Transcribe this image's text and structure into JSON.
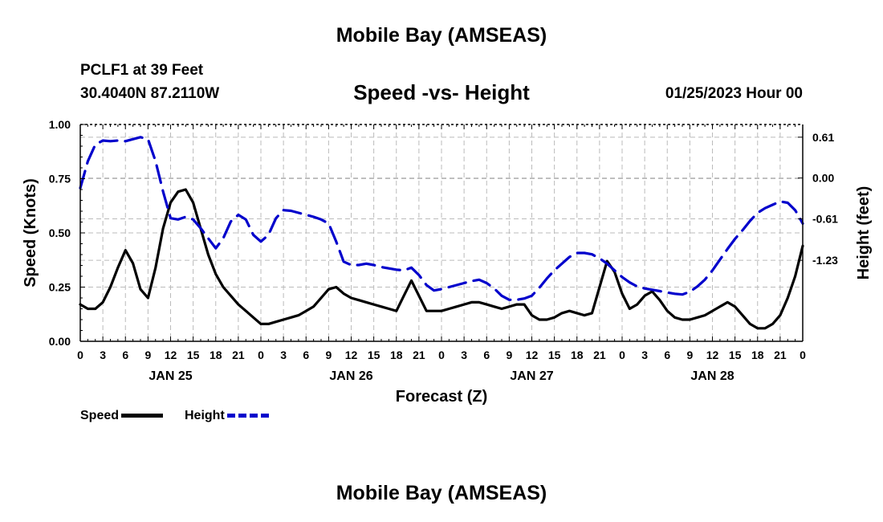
{
  "header": {
    "title_top": "Mobile Bay (AMSEAS)",
    "station": "PCLF1 at 39 Feet",
    "coords": "30.4040N  87.2110W",
    "datetime": "01/25/2023 Hour 00",
    "title_bottom": "Mobile Bay (AMSEAS)"
  },
  "legend": {
    "speed": "Speed",
    "height": "Height"
  },
  "colors": {
    "speed": "#000000",
    "height": "#0000cc",
    "grid": "#bbbbbb"
  },
  "chart_data": {
    "type": "line",
    "title": "Speed -vs- Height",
    "xlabel": "Forecast (Z)",
    "ylabel_left": "Speed (Knots)",
    "ylabel_right": "Height (feet)",
    "x_range": [
      0,
      96
    ],
    "ylim_left": [
      0,
      1.0
    ],
    "ylim_right": [
      -2.44,
      0.8
    ],
    "x_tick_step_hours": 3,
    "x_tick_labels": [
      "0",
      "3",
      "6",
      "9",
      "12",
      "15",
      "18",
      "21",
      "0",
      "3",
      "6",
      "9",
      "12",
      "15",
      "18",
      "21",
      "0",
      "3",
      "6",
      "9",
      "12",
      "15",
      "18",
      "21",
      "0",
      "3",
      "6",
      "9",
      "12",
      "15",
      "18",
      "21",
      "0"
    ],
    "day_labels": [
      {
        "label": "JAN 25",
        "hour": 12
      },
      {
        "label": "JAN 26",
        "hour": 36
      },
      {
        "label": "JAN 27",
        "hour": 60
      },
      {
        "label": "JAN 28",
        "hour": 84
      }
    ],
    "y_ticks_left": [
      0.0,
      0.25,
      0.5,
      0.75,
      1.0
    ],
    "y_tick_labels_left": [
      "0.00",
      "0.25",
      "0.50",
      "0.75",
      "1.00"
    ],
    "y_ticks_right": [
      0.61,
      0.0,
      -0.61,
      -1.23
    ],
    "y_tick_labels_right": [
      "0.61",
      "0.00",
      "-0.61",
      "-1.23"
    ],
    "grid": true,
    "series": [
      {
        "name": "Speed",
        "axis": "left",
        "x": [
          0,
          1,
          2,
          3,
          4,
          5,
          6,
          7,
          8,
          9,
          10,
          11,
          12,
          13,
          14,
          15,
          16,
          17,
          18,
          19,
          20,
          21,
          22,
          23,
          24,
          25,
          26,
          27,
          28,
          29,
          30,
          31,
          32,
          33,
          34,
          35,
          36,
          37,
          38,
          39,
          40,
          41,
          42,
          43,
          44,
          45,
          46,
          47,
          48,
          49,
          50,
          51,
          52,
          53,
          54,
          55,
          56,
          57,
          58,
          59,
          60,
          61,
          62,
          63,
          64,
          65,
          66,
          67,
          68,
          69,
          70,
          71,
          72,
          73,
          74,
          75,
          76,
          77,
          78,
          79,
          80,
          81,
          82,
          83,
          84,
          85,
          86,
          87,
          88,
          89,
          90,
          91,
          92,
          93,
          94,
          95,
          96
        ],
        "values": [
          0.17,
          0.15,
          0.15,
          0.18,
          0.25,
          0.34,
          0.42,
          0.36,
          0.24,
          0.2,
          0.34,
          0.52,
          0.64,
          0.69,
          0.7,
          0.64,
          0.52,
          0.4,
          0.31,
          0.25,
          0.21,
          0.17,
          0.14,
          0.11,
          0.08,
          0.08,
          0.09,
          0.1,
          0.11,
          0.12,
          0.14,
          0.16,
          0.2,
          0.24,
          0.25,
          0.22,
          0.2,
          0.19,
          0.18,
          0.17,
          0.16,
          0.15,
          0.14,
          0.21,
          0.28,
          0.21,
          0.14,
          0.14,
          0.14,
          0.15,
          0.16,
          0.17,
          0.18,
          0.18,
          0.17,
          0.16,
          0.15,
          0.16,
          0.17,
          0.17,
          0.12,
          0.1,
          0.1,
          0.11,
          0.13,
          0.14,
          0.13,
          0.12,
          0.13,
          0.25,
          0.37,
          0.32,
          0.22,
          0.15,
          0.17,
          0.21,
          0.23,
          0.19,
          0.14,
          0.11,
          0.1,
          0.1,
          0.11,
          0.12,
          0.14,
          0.16,
          0.18,
          0.16,
          0.12,
          0.08,
          0.06,
          0.06,
          0.08,
          0.12,
          0.2,
          0.3,
          0.44
        ]
      },
      {
        "name": "Height",
        "axis": "right",
        "x": [
          0,
          1,
          2,
          3,
          4,
          5,
          6,
          7,
          8,
          9,
          10,
          11,
          12,
          13,
          14,
          15,
          16,
          17,
          18,
          19,
          20,
          21,
          22,
          23,
          24,
          25,
          26,
          27,
          28,
          29,
          30,
          31,
          32,
          33,
          34,
          35,
          36,
          37,
          38,
          39,
          40,
          41,
          42,
          43,
          44,
          45,
          46,
          47,
          48,
          49,
          50,
          51,
          52,
          53,
          54,
          55,
          56,
          57,
          58,
          59,
          60,
          61,
          62,
          63,
          64,
          65,
          66,
          67,
          68,
          69,
          70,
          71,
          72,
          73,
          74,
          75,
          76,
          77,
          78,
          79,
          80,
          81,
          82,
          83,
          84,
          85,
          86,
          87,
          88,
          89,
          90,
          91,
          92,
          93,
          94,
          95,
          96
        ],
        "values": [
          -0.15,
          0.25,
          0.5,
          0.56,
          0.55,
          0.56,
          0.55,
          0.58,
          0.61,
          0.58,
          0.25,
          -0.2,
          -0.6,
          -0.62,
          -0.58,
          -0.62,
          -0.75,
          -0.9,
          -1.05,
          -0.9,
          -0.65,
          -0.55,
          -0.62,
          -0.85,
          -0.95,
          -0.85,
          -0.6,
          -0.48,
          -0.49,
          -0.52,
          -0.55,
          -0.58,
          -0.62,
          -0.68,
          -0.95,
          -1.25,
          -1.3,
          -1.3,
          -1.28,
          -1.3,
          -1.33,
          -1.35,
          -1.37,
          -1.38,
          -1.34,
          -1.45,
          -1.6,
          -1.68,
          -1.66,
          -1.63,
          -1.6,
          -1.57,
          -1.54,
          -1.52,
          -1.57,
          -1.65,
          -1.76,
          -1.82,
          -1.82,
          -1.8,
          -1.76,
          -1.64,
          -1.5,
          -1.38,
          -1.28,
          -1.18,
          -1.12,
          -1.12,
          -1.14,
          -1.2,
          -1.28,
          -1.38,
          -1.48,
          -1.56,
          -1.62,
          -1.65,
          -1.67,
          -1.69,
          -1.71,
          -1.73,
          -1.74,
          -1.7,
          -1.62,
          -1.52,
          -1.38,
          -1.22,
          -1.06,
          -0.91,
          -0.78,
          -0.64,
          -0.52,
          -0.45,
          -0.4,
          -0.35,
          -0.37,
          -0.48,
          -0.68
        ]
      }
    ]
  }
}
